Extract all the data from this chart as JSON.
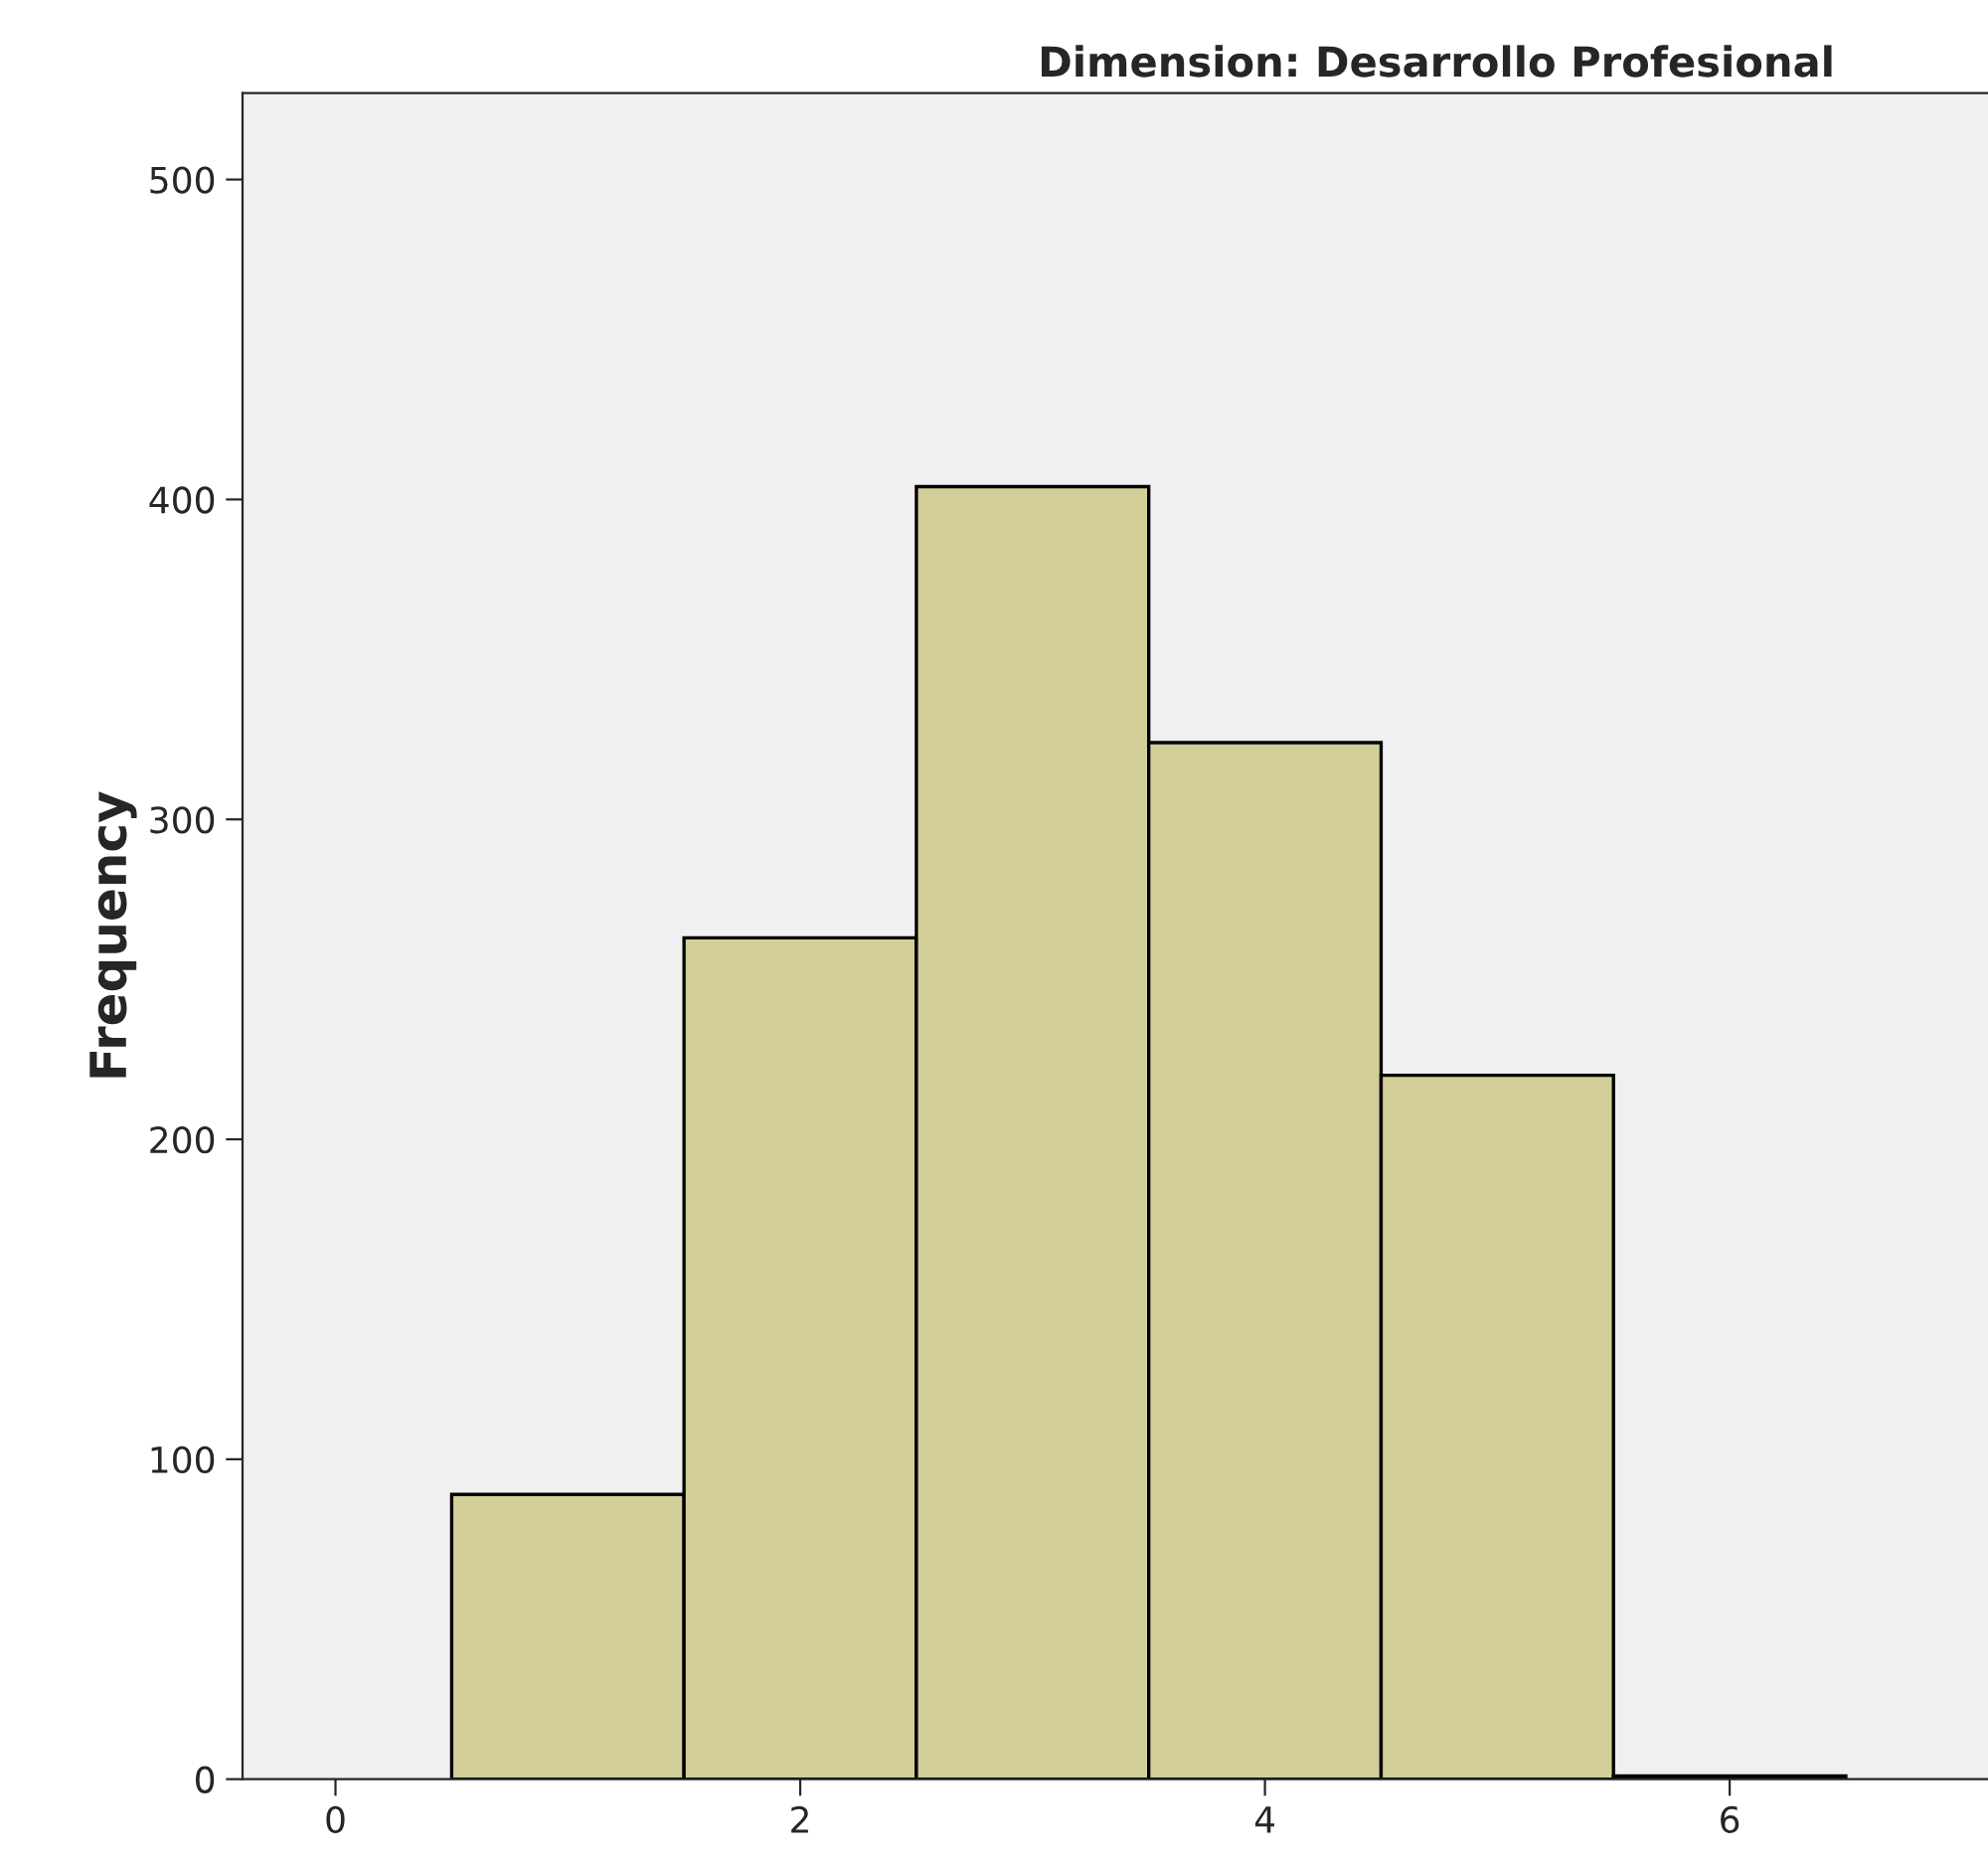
{
  "chart_data": {
    "type": "histogram",
    "title": "Dimension: Desarrollo Profesional",
    "ylabel": "Frequency",
    "bins": [
      0.5,
      1.5,
      2.5,
      3.5,
      4.5,
      5.5,
      6.5
    ],
    "values": [
      89,
      263,
      404,
      324,
      220,
      1
    ],
    "color": "#d3cf98",
    "xlim": [
      -0.4,
      7.3
    ],
    "xticks": [
      0,
      2,
      4,
      6
    ],
    "ylim": [
      0,
      527
    ],
    "yticks": [
      0,
      100,
      200,
      300,
      400,
      500
    ],
    "grid": false
  }
}
